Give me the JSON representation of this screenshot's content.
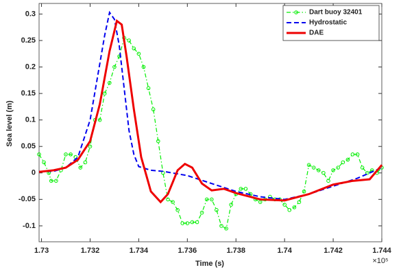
{
  "chart_data": {
    "type": "line",
    "xlabel": "Time (s)",
    "ylabel": "Sea level (m)",
    "x_multiplier": "×10⁵",
    "xlim": [
      1.7299,
      1.744
    ],
    "xticks": [
      1.73,
      1.732,
      1.734,
      1.736,
      1.738,
      1.74,
      1.742,
      1.744
    ],
    "ylim": [
      -0.13,
      0.32
    ],
    "yticks": [
      -0.1,
      -0.05,
      0,
      0.05,
      0.1,
      0.15,
      0.2,
      0.25,
      0.3
    ],
    "legend": "upper right",
    "grid": false,
    "series": [
      {
        "name": "Dart buoy 32401",
        "color": "#00ee00",
        "line_style": "-.",
        "marker": "o",
        "x": [
          1.7299,
          1.7301,
          1.7303,
          1.7304,
          1.7306,
          1.7308,
          1.731,
          1.7312,
          1.7314,
          1.7316,
          1.7318,
          1.732,
          1.7322,
          1.7324,
          1.7326,
          1.7328,
          1.733,
          1.7332,
          1.7334,
          1.7336,
          1.7338,
          1.734,
          1.7342,
          1.7344,
          1.7346,
          1.7348,
          1.735,
          1.7352,
          1.7354,
          1.7356,
          1.7358,
          1.736,
          1.7362,
          1.7364,
          1.7366,
          1.7368,
          1.737,
          1.7372,
          1.7374,
          1.7376,
          1.7378,
          1.738,
          1.7382,
          1.7384,
          1.7386,
          1.7388,
          1.739,
          1.7392,
          1.7394,
          1.7396,
          1.7398,
          1.74,
          1.7402,
          1.7404,
          1.7406,
          1.7408,
          1.741,
          1.7412,
          1.7414,
          1.7416,
          1.7418,
          1.742,
          1.7422,
          1.7424,
          1.7426,
          1.7428,
          1.743,
          1.7432,
          1.7434,
          1.7436,
          1.7438,
          1.744
        ],
        "values": [
          0.035,
          0.02,
          0.0,
          -0.015,
          -0.015,
          0.005,
          0.035,
          0.035,
          0.03,
          0.01,
          0.02,
          0.05,
          0.1,
          0.1,
          0.15,
          0.17,
          0.2,
          0.22,
          0.255,
          0.25,
          0.235,
          0.225,
          0.2,
          0.16,
          0.12,
          0.06,
          0.0,
          -0.05,
          -0.055,
          -0.07,
          -0.095,
          -0.095,
          -0.093,
          -0.093,
          -0.075,
          -0.05,
          -0.05,
          -0.07,
          -0.1,
          -0.105,
          -0.06,
          -0.04,
          -0.03,
          -0.03,
          -0.04,
          -0.05,
          -0.055,
          -0.05,
          -0.045,
          -0.05,
          -0.05,
          -0.06,
          -0.07,
          -0.065,
          -0.055,
          -0.035,
          0.015,
          0.01,
          0.005,
          0.0,
          -0.015,
          0.005,
          0.01,
          0.02,
          0.025,
          0.035,
          0.035,
          0.01,
          0.0,
          0.005,
          0.0,
          0.01
        ]
      },
      {
        "name": "Hydrostatic",
        "color": "#0000ee",
        "line_style": "--",
        "marker": null,
        "x": [
          1.7299,
          1.7305,
          1.731,
          1.7315,
          1.732,
          1.7323,
          1.7326,
          1.7328,
          1.733,
          1.7332,
          1.7334,
          1.7336,
          1.7338,
          1.734,
          1.7345,
          1.735,
          1.736,
          1.737,
          1.738,
          1.739,
          1.74,
          1.741,
          1.742,
          1.743,
          1.744
        ],
        "values": [
          0.003,
          0.003,
          0.01,
          0.03,
          0.1,
          0.18,
          0.26,
          0.303,
          0.29,
          0.24,
          0.16,
          0.08,
          0.035,
          0.012,
          0.005,
          0.003,
          -0.005,
          -0.02,
          -0.035,
          -0.045,
          -0.05,
          -0.04,
          -0.025,
          -0.01,
          0.01
        ]
      },
      {
        "name": "DAE",
        "color": "#ee0000",
        "line_style": "-",
        "marker": null,
        "x": [
          1.7299,
          1.7305,
          1.731,
          1.7315,
          1.732,
          1.7324,
          1.7328,
          1.7331,
          1.7333,
          1.7335,
          1.7338,
          1.7341,
          1.7345,
          1.7349,
          1.7352,
          1.7356,
          1.7359,
          1.7362,
          1.7366,
          1.737,
          1.7375,
          1.738,
          1.739,
          1.74,
          1.741,
          1.742,
          1.7428,
          1.7435,
          1.744
        ],
        "values": [
          0.002,
          0.005,
          0.01,
          0.025,
          0.06,
          0.13,
          0.23,
          0.287,
          0.28,
          0.22,
          0.12,
          0.03,
          -0.035,
          -0.055,
          -0.04,
          0.005,
          0.017,
          0.01,
          -0.02,
          -0.033,
          -0.03,
          -0.038,
          -0.05,
          -0.052,
          -0.04,
          -0.022,
          -0.015,
          -0.012,
          0.015
        ]
      }
    ]
  }
}
